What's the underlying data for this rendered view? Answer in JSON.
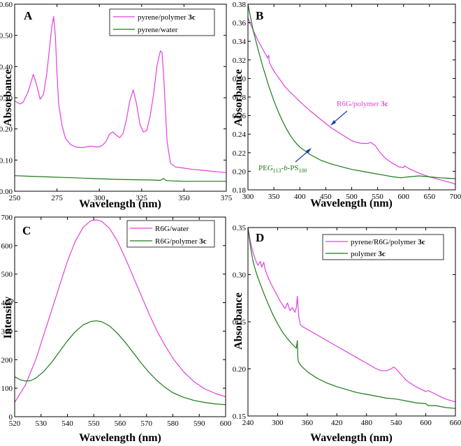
{
  "chart_data": [
    {
      "type": "line",
      "panel": "A",
      "xlabel": "Wavelength (nm)",
      "ylabel": "Absorbance",
      "xlim": [
        250,
        375
      ],
      "ylim": [
        0.0,
        0.6
      ],
      "xticks": [
        250,
        275,
        300,
        325,
        350,
        375
      ],
      "xtick_labels": [
        "250",
        "275",
        "300",
        "325",
        "350",
        "375"
      ],
      "yticks": [
        0.0,
        0.1,
        0.2,
        0.3,
        0.4,
        0.5,
        0.6
      ],
      "ytick_labels": [
        "0.00",
        "0.10",
        "0.20",
        "0.30",
        "0.40",
        "0.50",
        "0.60"
      ],
      "legend_position": "top-right",
      "series": [
        {
          "name": "pyrene/polymer ",
          "bold_suffix": "3c",
          "color": "#e040e0",
          "x": [
            250,
            253,
            255,
            258,
            261,
            263,
            265,
            267,
            269,
            271,
            272,
            273,
            274,
            275,
            276,
            278,
            280,
            283,
            286,
            290,
            295,
            298,
            300,
            302,
            304,
            306,
            308,
            310,
            312,
            314,
            316,
            318,
            320,
            322,
            324,
            326,
            328,
            330,
            332,
            334,
            336,
            337,
            338,
            340,
            342,
            345,
            350,
            355,
            360,
            365,
            370,
            375
          ],
          "y": [
            0.29,
            0.28,
            0.285,
            0.32,
            0.375,
            0.34,
            0.295,
            0.31,
            0.38,
            0.48,
            0.53,
            0.56,
            0.5,
            0.38,
            0.28,
            0.21,
            0.17,
            0.15,
            0.142,
            0.14,
            0.145,
            0.142,
            0.143,
            0.148,
            0.16,
            0.183,
            0.19,
            0.18,
            0.172,
            0.185,
            0.23,
            0.29,
            0.325,
            0.28,
            0.215,
            0.19,
            0.195,
            0.24,
            0.31,
            0.4,
            0.45,
            0.445,
            0.37,
            0.16,
            0.09,
            0.078,
            0.074,
            0.07,
            0.068,
            0.065,
            0.062,
            0.06
          ]
        },
        {
          "name": "pyrene/water",
          "color": "#1a7a1a",
          "x": [
            250,
            260,
            270,
            280,
            290,
            300,
            310,
            320,
            330,
            336,
            337,
            338,
            339,
            340,
            345,
            350,
            360,
            375
          ],
          "y": [
            0.05,
            0.048,
            0.046,
            0.044,
            0.042,
            0.04,
            0.038,
            0.037,
            0.036,
            0.035,
            0.038,
            0.041,
            0.036,
            0.034,
            0.033,
            0.032,
            0.032,
            0.032
          ]
        }
      ]
    },
    {
      "type": "line",
      "panel": "B",
      "xlabel": "Wavelength (nm)",
      "ylabel": "Absorbance",
      "xlim": [
        300,
        700
      ],
      "ylim": [
        0.18,
        0.38
      ],
      "xticks": [
        300,
        350,
        400,
        450,
        500,
        550,
        600,
        650,
        700
      ],
      "xtick_labels": [
        "300",
        "350",
        "400",
        "450",
        "500",
        "550",
        "600",
        "650",
        "700"
      ],
      "yticks": [
        0.18,
        0.2,
        0.22,
        0.24,
        0.26,
        0.28,
        0.3,
        0.32,
        0.34,
        0.36,
        0.38
      ],
      "ytick_labels": [
        "0.18",
        "0.20",
        "0.22",
        "0.24",
        "0.26",
        "0.28",
        "0.30",
        "0.32",
        "0.34",
        "0.36",
        "0.38"
      ],
      "annotations": [
        {
          "text": "R6G/polymer ",
          "bold_suffix": "3c",
          "color": "#e040e0"
        },
        {
          "text_main": "PEG",
          "sub1": "113",
          "mid": "-",
          "italic": "b",
          "mid2": "-PS",
          "sub2": "100",
          "color": "#1a7a1a"
        }
      ],
      "series": [
        {
          "name": "R6G/polymer 3c",
          "color": "#e040e0",
          "x": [
            300,
            310,
            320,
            330,
            338,
            340,
            341,
            345,
            350,
            360,
            370,
            380,
            400,
            420,
            440,
            460,
            480,
            500,
            510,
            520,
            530,
            537,
            545,
            555,
            565,
            575,
            590,
            600,
            602,
            610,
            630,
            650,
            670,
            690,
            700
          ],
          "y": [
            0.365,
            0.352,
            0.34,
            0.33,
            0.322,
            0.325,
            0.318,
            0.313,
            0.308,
            0.3,
            0.292,
            0.286,
            0.275,
            0.265,
            0.256,
            0.247,
            0.24,
            0.233,
            0.231,
            0.23,
            0.23,
            0.231,
            0.228,
            0.22,
            0.214,
            0.21,
            0.205,
            0.204,
            0.206,
            0.203,
            0.198,
            0.194,
            0.191,
            0.188,
            0.186
          ]
        },
        {
          "name": "PEG113-b-PS100",
          "color": "#1a7a1a",
          "x": [
            300,
            305,
            310,
            320,
            330,
            340,
            350,
            360,
            370,
            380,
            390,
            400,
            420,
            440,
            460,
            480,
            500,
            520,
            540,
            560,
            580,
            595,
            610,
            630,
            650,
            670,
            700
          ],
          "y": [
            0.38,
            0.366,
            0.352,
            0.33,
            0.31,
            0.292,
            0.276,
            0.262,
            0.25,
            0.24,
            0.232,
            0.226,
            0.218,
            0.212,
            0.208,
            0.205,
            0.202,
            0.2,
            0.198,
            0.196,
            0.194,
            0.193,
            0.194,
            0.195,
            0.194,
            0.193,
            0.192
          ]
        }
      ]
    },
    {
      "type": "line",
      "panel": "C",
      "xlabel": "Wavelength (nm)",
      "ylabel": "Intensity",
      "xlim": [
        520,
        600
      ],
      "ylim": [
        0,
        700
      ],
      "xticks": [
        520,
        530,
        540,
        550,
        560,
        570,
        580,
        590,
        600
      ],
      "xtick_labels": [
        "520",
        "530",
        "540",
        "550",
        "560",
        "570",
        "580",
        "590",
        "600"
      ],
      "yticks": [
        0,
        100,
        200,
        300,
        400,
        500,
        600,
        700
      ],
      "ytick_labels": [
        "0",
        "100",
        "200",
        "300",
        "400",
        "500",
        "600",
        "700"
      ],
      "legend_position": "top-right",
      "series": [
        {
          "name": "R6G/water",
          "color": "#e040e0",
          "x": [
            520,
            524,
            528,
            532,
            536,
            540,
            543,
            546,
            549,
            551,
            553,
            556,
            559,
            562,
            565,
            568,
            571,
            574,
            577,
            580,
            584,
            588,
            592,
            596,
            600
          ],
          "y": [
            50,
            110,
            200,
            315,
            430,
            545,
            615,
            665,
            688,
            690,
            685,
            660,
            615,
            555,
            490,
            425,
            360,
            300,
            250,
            205,
            158,
            123,
            98,
            82,
            70
          ]
        },
        {
          "name": "R6G/polymer ",
          "bold_suffix": "3c",
          "color": "#1a7a1a",
          "x": [
            520,
            522,
            524,
            526,
            528,
            531,
            534,
            537,
            540,
            543,
            546,
            549,
            551,
            553,
            556,
            559,
            562,
            565,
            568,
            571,
            574,
            577,
            580,
            584,
            588,
            592,
            596,
            600
          ],
          "y": [
            140,
            130,
            125,
            126,
            135,
            158,
            190,
            228,
            266,
            298,
            322,
            334,
            336,
            333,
            318,
            292,
            260,
            224,
            188,
            155,
            126,
            103,
            84,
            68,
            57,
            50,
            45,
            42
          ]
        }
      ]
    },
    {
      "type": "line",
      "panel": "D",
      "xlabel": "Wavelength (nm)",
      "ylabel": "Absorbance",
      "xlim": [
        240,
        660
      ],
      "ylim": [
        0.15,
        0.35
      ],
      "xticks": [
        240,
        300,
        360,
        420,
        480,
        540,
        600,
        660
      ],
      "xtick_labels": [
        "240",
        "300",
        "360",
        "420",
        "480",
        "540",
        "600",
        "660"
      ],
      "yticks": [
        0.15,
        0.2,
        0.25,
        0.3,
        0.35
      ],
      "ytick_labels": [
        "0.15",
        "0.20",
        "0.25",
        "0.30",
        "0.35"
      ],
      "legend_position": "top-right",
      "series": [
        {
          "name": "pyrene/R6G/polymer ",
          "bold_suffix": "3c",
          "color": "#e040e0",
          "x": [
            240,
            245,
            250,
            255,
            260,
            265,
            268,
            272,
            275,
            280,
            285,
            290,
            295,
            300,
            305,
            310,
            315,
            320,
            325,
            330,
            335,
            338,
            340,
            343,
            346,
            350,
            360,
            380,
            400,
            420,
            440,
            460,
            480,
            500,
            510,
            520,
            530,
            535,
            540,
            550,
            560,
            580,
            600,
            605,
            620,
            640,
            660
          ],
          "y": [
            0.35,
            0.335,
            0.324,
            0.316,
            0.31,
            0.314,
            0.308,
            0.313,
            0.305,
            0.298,
            0.292,
            0.287,
            0.282,
            0.277,
            0.272,
            0.268,
            0.264,
            0.27,
            0.262,
            0.265,
            0.26,
            0.265,
            0.277,
            0.255,
            0.247,
            0.245,
            0.242,
            0.236,
            0.23,
            0.224,
            0.218,
            0.212,
            0.206,
            0.2,
            0.198,
            0.198,
            0.2,
            0.202,
            0.2,
            0.194,
            0.188,
            0.181,
            0.176,
            0.177,
            0.173,
            0.168,
            0.165
          ]
        },
        {
          "name": "polymer ",
          "bold_suffix": "3c",
          "color": "#1a7a1a",
          "x": [
            240,
            245,
            250,
            255,
            260,
            270,
            280,
            290,
            300,
            310,
            320,
            330,
            338,
            340,
            341,
            342,
            345,
            350,
            360,
            380,
            400,
            420,
            440,
            460,
            480,
            500,
            520,
            540,
            560,
            580,
            600,
            605,
            620,
            640,
            660
          ],
          "y": [
            0.35,
            0.33,
            0.315,
            0.305,
            0.297,
            0.283,
            0.27,
            0.258,
            0.248,
            0.239,
            0.232,
            0.226,
            0.222,
            0.23,
            0.212,
            0.208,
            0.205,
            0.202,
            0.197,
            0.19,
            0.185,
            0.181,
            0.178,
            0.175,
            0.173,
            0.171,
            0.169,
            0.168,
            0.166,
            0.164,
            0.163,
            0.161,
            0.161,
            0.159,
            0.158
          ]
        }
      ]
    }
  ]
}
